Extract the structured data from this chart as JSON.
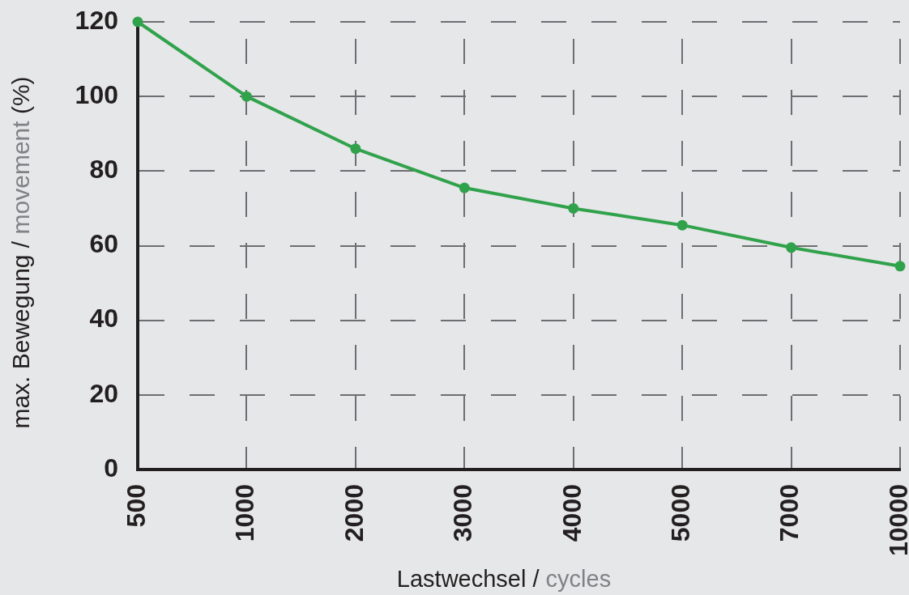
{
  "chart_data": {
    "type": "line",
    "xlabel": "Lastwechsel / cycles",
    "ylabel": "max. Bewegung / movement (%)",
    "categories": [
      "500",
      "1000",
      "2000",
      "3000",
      "4000",
      "5000",
      "7000",
      "10000"
    ],
    "series": [
      {
        "color": "#31a24c",
        "values": [
          120,
          100,
          86,
          75.5,
          70,
          65.5,
          59.5,
          54.5
        ]
      }
    ],
    "ylim": [
      0,
      120
    ],
    "yticks": [
      0,
      20,
      40,
      60,
      80,
      100,
      120
    ],
    "grid": true,
    "marker": "circle",
    "line_style": "solid"
  }
}
